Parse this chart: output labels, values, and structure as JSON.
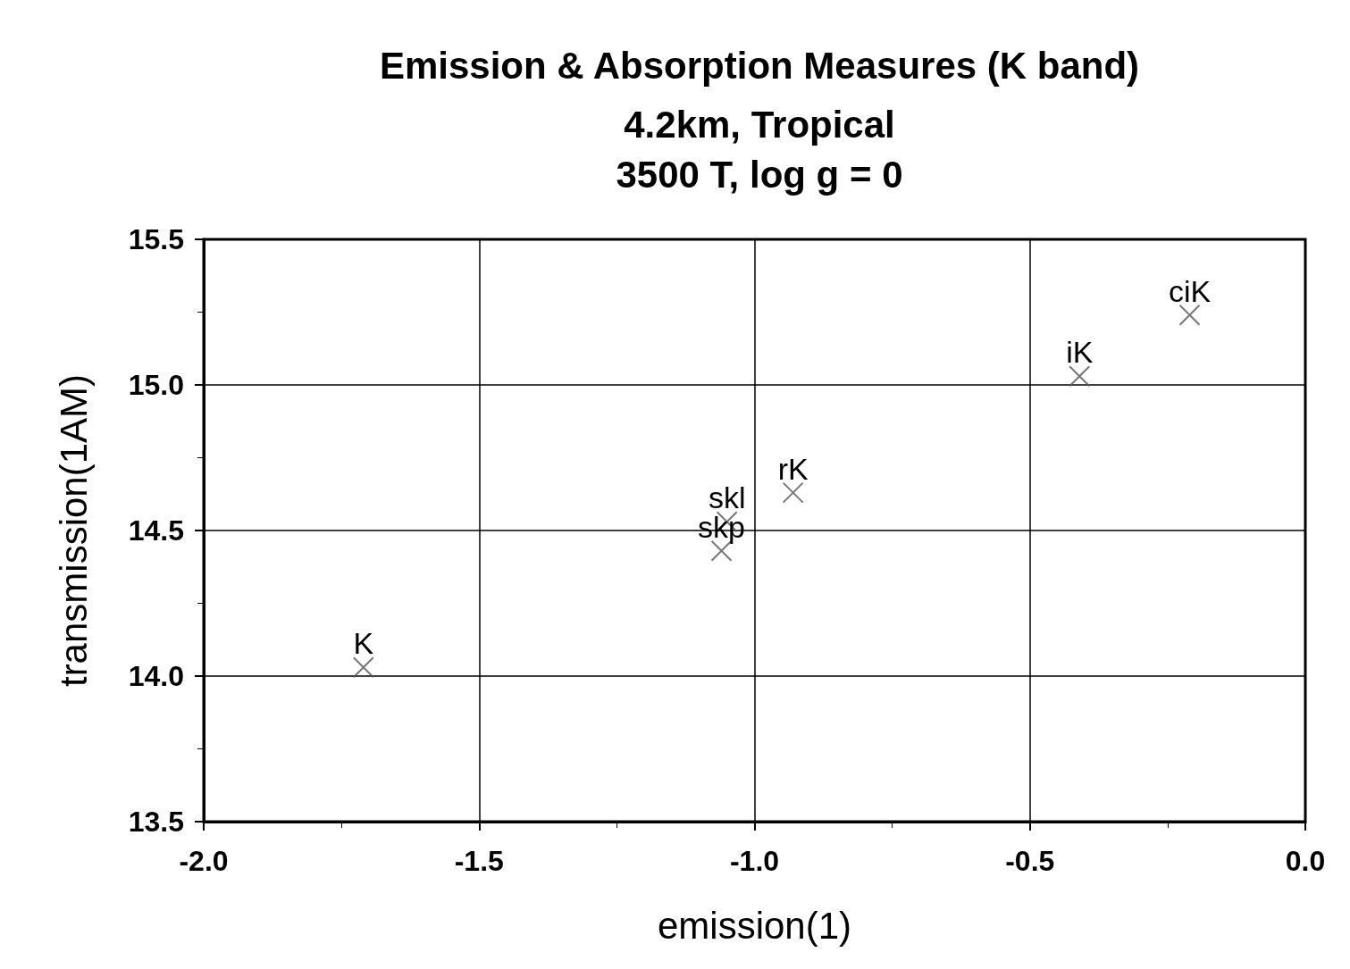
{
  "chart_data": {
    "type": "scatter",
    "title": "Emission & Absorption Measures (K band)",
    "subtitle": "4.2km, Tropical\n3500 T, log g = 0",
    "xlabel": "emission(1)",
    "ylabel": "transmission(1AM)",
    "x": [
      -1.71,
      -1.06,
      -1.05,
      -0.93,
      -0.41,
      -0.21
    ],
    "values": [
      14.03,
      14.43,
      14.53,
      14.63,
      15.03,
      15.24
    ],
    "color": "#555555",
    "marker": "cross",
    "xlim": [
      -2.0,
      0.0
    ],
    "xticks": [
      {
        "value": -2.0,
        "label": "-2.0"
      },
      {
        "value": -1.5,
        "label": "-1.5"
      },
      {
        "value": -1.0,
        "label": "-1.0"
      },
      {
        "value": -0.5,
        "label": "-0.5"
      },
      {
        "value": 0.0,
        "label": "0.0"
      }
    ],
    "ylim": [
      13.5,
      15.5
    ],
    "yticks": [
      13.5,
      {
        "value": 14.0,
        "label": "14.0"
      },
      14.5,
      {
        "value": 15.0,
        "label": "15.0"
      },
      15.5
    ],
    "grid": true,
    "annotations": [
      {
        "text": "K",
        "x": -1.71,
        "y": 14.03
      },
      {
        "text": "skp",
        "x": -1.06,
        "y": 14.43
      },
      {
        "text": "skl",
        "x": -1.05,
        "y": 14.53
      },
      {
        "text": "rK",
        "x": -0.93,
        "y": 14.63
      },
      {
        "text": "iK",
        "x": -0.41,
        "y": 15.03
      },
      {
        "text": "ciK",
        "x": -0.21,
        "y": 15.24
      }
    ]
  }
}
